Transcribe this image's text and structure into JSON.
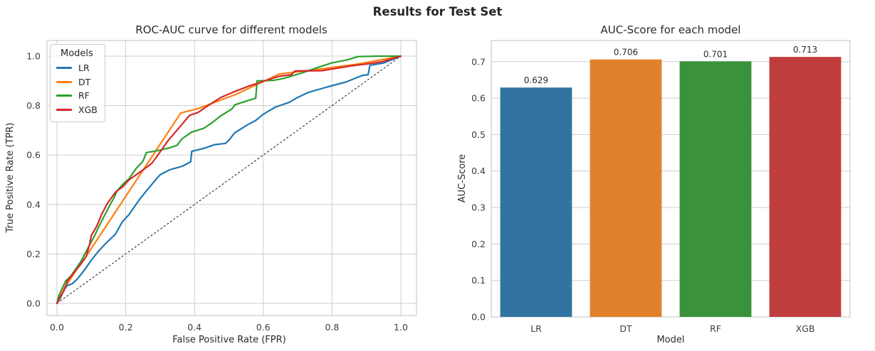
{
  "figure": {
    "title": "Results for Test Set"
  },
  "legend": {
    "title": "Models"
  },
  "colors": {
    "grid": "#cdcdcd",
    "spine": "#c0c0c0",
    "diagonal": "#1a1a1a",
    "line_palette": [
      "#1f77b4",
      "#ff7f0e",
      "#2ca02c",
      "#d62728"
    ],
    "bar_palette": [
      "#3274a1",
      "#e1812c",
      "#3a923a",
      "#c03d3e"
    ]
  },
  "chart_data": [
    {
      "type": "line",
      "title": "ROC-AUC curve for different models",
      "xlabel": "False Positive Rate (FPR)",
      "ylabel": "True Positive Rate (TPR)",
      "xlim": [
        0,
        1
      ],
      "ylim": [
        0,
        1
      ],
      "xticks": [
        "0.0",
        "0.2",
        "0.4",
        "0.6",
        "0.8",
        "1.0"
      ],
      "yticks": [
        "0.0",
        "0.2",
        "0.4",
        "0.6",
        "0.8",
        "1.0"
      ],
      "grid": true,
      "legend_position": "upper left",
      "reference_line": {
        "name": "chance-diagonal",
        "style": "dashed",
        "points": [
          [
            0,
            0
          ],
          [
            1,
            1
          ]
        ]
      },
      "series": [
        {
          "name": "LR",
          "color": "#1f77b4",
          "points": [
            [
              0,
              0
            ],
            [
              0.01,
              0.02
            ],
            [
              0.02,
              0.055
            ],
            [
              0.03,
              0.072
            ],
            [
              0.045,
              0.08
            ],
            [
              0.06,
              0.1
            ],
            [
              0.08,
              0.135
            ],
            [
              0.1,
              0.175
            ],
            [
              0.12,
              0.21
            ],
            [
              0.14,
              0.24
            ],
            [
              0.155,
              0.26
            ],
            [
              0.17,
              0.28
            ],
            [
              0.19,
              0.33
            ],
            [
              0.21,
              0.36
            ],
            [
              0.24,
              0.42
            ],
            [
              0.26,
              0.455
            ],
            [
              0.29,
              0.505
            ],
            [
              0.3,
              0.52
            ],
            [
              0.327,
              0.54
            ],
            [
              0.365,
              0.555
            ],
            [
              0.389,
              0.573
            ],
            [
              0.392,
              0.615
            ],
            [
              0.427,
              0.627
            ],
            [
              0.459,
              0.642
            ],
            [
              0.49,
              0.647
            ],
            [
              0.5,
              0.66
            ],
            [
              0.517,
              0.69
            ],
            [
              0.554,
              0.722
            ],
            [
              0.578,
              0.74
            ],
            [
              0.6,
              0.765
            ],
            [
              0.634,
              0.793
            ],
            [
              0.675,
              0.813
            ],
            [
              0.7,
              0.833
            ],
            [
              0.73,
              0.853
            ],
            [
              0.785,
              0.875
            ],
            [
              0.84,
              0.895
            ],
            [
              0.888,
              0.922
            ],
            [
              0.905,
              0.925
            ],
            [
              0.91,
              0.963
            ],
            [
              0.95,
              0.972
            ],
            [
              1,
              1
            ]
          ]
        },
        {
          "name": "DT",
          "color": "#ff7f0e",
          "points": [
            [
              0,
              0
            ],
            [
              0.008,
              0.02
            ],
            [
              0.02,
              0.06
            ],
            [
              0.03,
              0.08
            ],
            [
              0.045,
              0.11
            ],
            [
              0.06,
              0.145
            ],
            [
              0.08,
              0.18
            ],
            [
              0.36,
              0.77
            ],
            [
              0.41,
              0.788
            ],
            [
              0.52,
              0.845
            ],
            [
              0.647,
              0.928
            ],
            [
              0.75,
              0.945
            ],
            [
              0.87,
              0.967
            ],
            [
              1,
              1
            ]
          ]
        },
        {
          "name": "RF",
          "color": "#2ca02c",
          "points": [
            [
              0,
              0
            ],
            [
              0.005,
              0.03
            ],
            [
              0.015,
              0.06
            ],
            [
              0.025,
              0.09
            ],
            [
              0.04,
              0.11
            ],
            [
              0.055,
              0.14
            ],
            [
              0.07,
              0.17
            ],
            [
              0.085,
              0.21
            ],
            [
              0.1,
              0.25
            ],
            [
              0.11,
              0.275
            ],
            [
              0.125,
              0.32
            ],
            [
              0.14,
              0.36
            ],
            [
              0.155,
              0.4
            ],
            [
              0.165,
              0.425
            ],
            [
              0.175,
              0.455
            ],
            [
              0.19,
              0.48
            ],
            [
              0.21,
              0.505
            ],
            [
              0.23,
              0.545
            ],
            [
              0.25,
              0.575
            ],
            [
              0.26,
              0.61
            ],
            [
              0.29,
              0.617
            ],
            [
              0.33,
              0.63
            ],
            [
              0.35,
              0.64
            ],
            [
              0.363,
              0.665
            ],
            [
              0.392,
              0.693
            ],
            [
              0.427,
              0.708
            ],
            [
              0.448,
              0.728
            ],
            [
              0.475,
              0.757
            ],
            [
              0.51,
              0.788
            ],
            [
              0.517,
              0.803
            ],
            [
              0.55,
              0.818
            ],
            [
              0.578,
              0.83
            ],
            [
              0.582,
              0.9
            ],
            [
              0.63,
              0.902
            ],
            [
              0.66,
              0.91
            ],
            [
              0.717,
              0.934
            ],
            [
              0.76,
              0.955
            ],
            [
              0.8,
              0.973
            ],
            [
              0.845,
              0.985
            ],
            [
              0.875,
              0.998
            ],
            [
              0.93,
              1
            ],
            [
              1,
              1
            ]
          ]
        },
        {
          "name": "XGB",
          "color": "#d62728",
          "points": [
            [
              0,
              0
            ],
            [
              0.01,
              0.03
            ],
            [
              0.02,
              0.05
            ],
            [
              0.03,
              0.09
            ],
            [
              0.05,
              0.125
            ],
            [
              0.07,
              0.16
            ],
            [
              0.085,
              0.19
            ],
            [
              0.095,
              0.24
            ],
            [
              0.1,
              0.275
            ],
            [
              0.115,
              0.31
            ],
            [
              0.13,
              0.36
            ],
            [
              0.145,
              0.4
            ],
            [
              0.155,
              0.42
            ],
            [
              0.17,
              0.45
            ],
            [
              0.19,
              0.47
            ],
            [
              0.21,
              0.5
            ],
            [
              0.24,
              0.53
            ],
            [
              0.275,
              0.565
            ],
            [
              0.29,
              0.593
            ],
            [
              0.324,
              0.66
            ],
            [
              0.358,
              0.715
            ],
            [
              0.385,
              0.76
            ],
            [
              0.41,
              0.772
            ],
            [
              0.44,
              0.8
            ],
            [
              0.475,
              0.832
            ],
            [
              0.517,
              0.857
            ],
            [
              0.56,
              0.88
            ],
            [
              0.6,
              0.898
            ],
            [
              0.645,
              0.918
            ],
            [
              0.682,
              0.925
            ],
            [
              0.692,
              0.94
            ],
            [
              0.77,
              0.941
            ],
            [
              0.853,
              0.96
            ],
            [
              0.9,
              0.968
            ],
            [
              0.944,
              0.977
            ],
            [
              1,
              1
            ]
          ]
        }
      ]
    },
    {
      "type": "bar",
      "title": "AUC-Score for each model",
      "xlabel": "Model",
      "ylabel": "AUC-Score",
      "categories": [
        "LR",
        "DT",
        "RF",
        "XGB"
      ],
      "values": [
        0.629,
        0.706,
        0.701,
        0.713
      ],
      "bar_labels": [
        "0.629",
        "0.706",
        "0.701",
        "0.713"
      ],
      "bar_colors": [
        "#3274a1",
        "#e1812c",
        "#3a923a",
        "#c03d3e"
      ],
      "ylim": [
        0,
        0.758
      ],
      "yticks": [
        "0.0",
        "0.1",
        "0.2",
        "0.3",
        "0.4",
        "0.5",
        "0.6",
        "0.7"
      ],
      "grid": true
    }
  ]
}
